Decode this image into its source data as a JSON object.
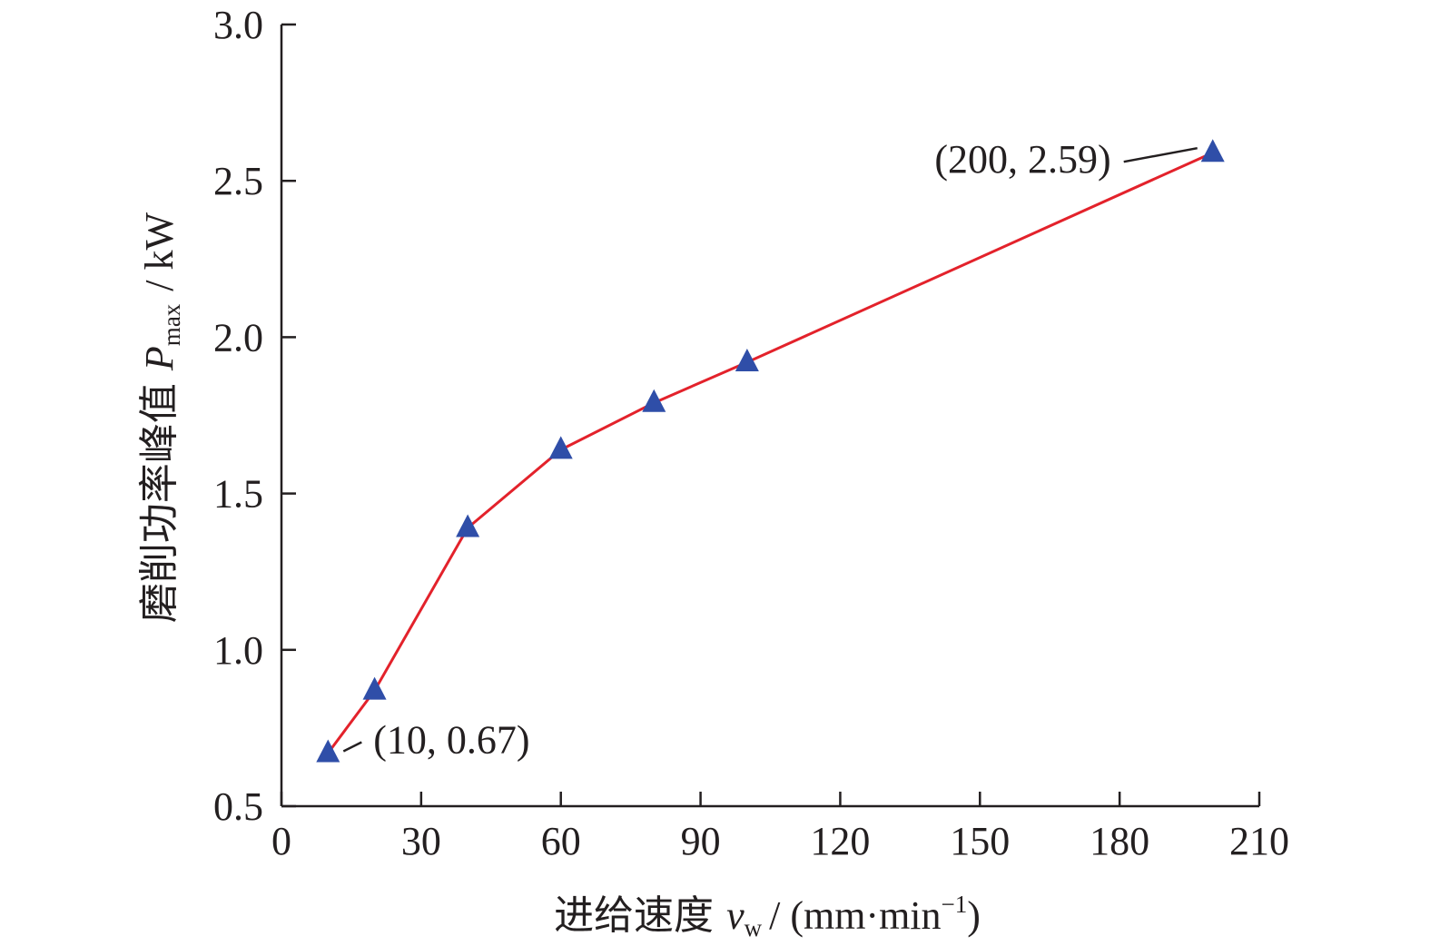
{
  "chart_data": {
    "type": "line",
    "x": [
      10,
      20,
      40,
      60,
      80,
      100,
      200
    ],
    "series": [
      {
        "values": [
          0.67,
          0.87,
          1.39,
          1.64,
          1.79,
          1.92,
          2.59
        ],
        "color": "#e3222b",
        "marker": "triangle",
        "marker_color": "#2f4ea8"
      }
    ],
    "xlim": [
      0,
      210
    ],
    "ylim": [
      0.5,
      3.0
    ],
    "xticks": [
      "0",
      "30",
      "60",
      "90",
      "120",
      "150",
      "180",
      "210"
    ],
    "yticks": [
      "0.5",
      "1.0",
      "1.5",
      "2.0",
      "2.5",
      "3.0"
    ],
    "xlabel": {
      "cn": "进给速度",
      "symbol": "v",
      "sub": "w",
      "unit_open": "/ (mm·min",
      "unit_sup": "−1",
      "unit_close": ")"
    },
    "ylabel": {
      "cn": "磨削功率峰值",
      "symbol": "P",
      "sub": "max",
      "unit": "/ kW"
    },
    "annotations": [
      {
        "text": "(10, 0.67)",
        "x": 10,
        "y": 0.67
      },
      {
        "text": "(200, 2.59)",
        "x": 200,
        "y": 2.59
      }
    ],
    "grid": false,
    "legend": "none"
  }
}
